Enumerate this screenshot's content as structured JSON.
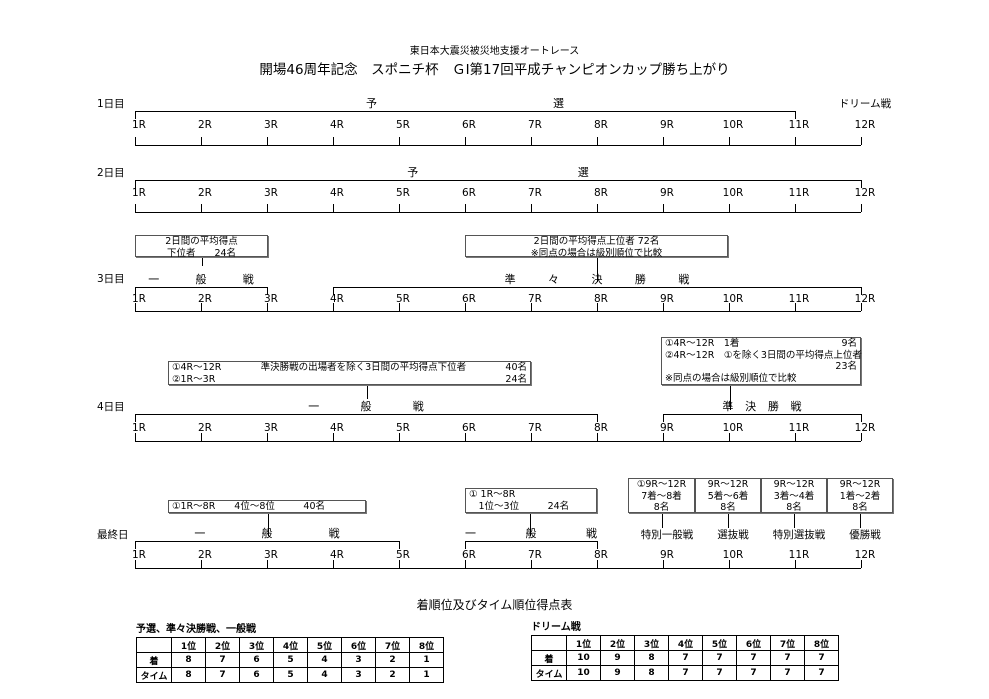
{
  "header": {
    "subtitle": "東日本大震災被災地支援オートレース",
    "title": "開場46周年記念　スポニチ杯　ＧⅠ第17回平成チャンピオンカップ勝ち上がり"
  },
  "rounds": [
    "1R",
    "2R",
    "3R",
    "4R",
    "5R",
    "6R",
    "7R",
    "8R",
    "9R",
    "10R",
    "11R",
    "12R"
  ],
  "days": [
    {
      "label": "1日目",
      "segments": [
        {
          "from": 1,
          "to": 11,
          "label": "予選"
        }
      ],
      "round_labels": [
        {
          "round": 12,
          "label": "ドリーム戦"
        }
      ]
    },
    {
      "label": "2日目",
      "segments": [
        {
          "from": 1,
          "to": 12,
          "label": "予選"
        }
      ],
      "round_labels": []
    },
    {
      "label": "3日目",
      "segments": [
        {
          "from": 1,
          "to": 3,
          "label": "一般戦"
        },
        {
          "from": 4,
          "to": 12,
          "label": "準々決勝戦"
        }
      ],
      "round_labels": []
    },
    {
      "label": "4日目",
      "segments": [
        {
          "from": 1,
          "to": 8,
          "label": "一般戦"
        },
        {
          "from": 9,
          "to": 12,
          "label": "準決勝戦"
        }
      ],
      "round_labels": []
    },
    {
      "label": "最終日",
      "segments": [
        {
          "from": 1,
          "to": 5,
          "label": "一般戦"
        },
        {
          "from": 6,
          "to": 8,
          "label": "一般戦"
        }
      ],
      "round_labels": [
        {
          "round": 9,
          "label": "特別一般戦"
        },
        {
          "round": 10,
          "label": "選抜戦"
        },
        {
          "round": 11,
          "label": "特別選抜戦"
        },
        {
          "round": 12,
          "label": "優勝戦"
        }
      ]
    }
  ],
  "boxes": [
    {
      "rows": [
        [
          "2日間の平均得点"
        ],
        [
          "下位者　　24名"
        ]
      ]
    },
    {
      "rows": [
        [
          "2日間の平均得点上位者  72名"
        ],
        [
          "※同点の場合は級別順位で比較"
        ]
      ]
    },
    {
      "rows": [
        [
          "①4R～12R",
          "準決勝戦の出場者を除く3日間の平均得点下位者",
          "40名"
        ],
        [
          "②1R～3R",
          "24名"
        ]
      ]
    },
    {
      "rows": [
        [
          "①4R～12R　1着",
          "9名"
        ],
        [
          "②4R～12R　①を除く3日間の平均得点上位者"
        ],
        [
          "",
          "23名"
        ],
        [
          "※同点の場合は級別順位で比較"
        ]
      ]
    },
    {
      "rows": [
        [
          "①1R～8R　　4位～8位　　　40名"
        ]
      ]
    },
    {
      "rows": [
        [
          "①  1R～8R"
        ],
        [
          "　1位～3位　　　24名"
        ]
      ]
    },
    {
      "rows": [
        [
          "①9R～12R"
        ],
        [
          "7着～8着"
        ],
        [
          "8名"
        ]
      ]
    },
    {
      "rows": [
        [
          "9R～12R"
        ],
        [
          "5着～6着"
        ],
        [
          "8名"
        ]
      ]
    },
    {
      "rows": [
        [
          "9R～12R"
        ],
        [
          "3着～4着"
        ],
        [
          "8名"
        ]
      ]
    },
    {
      "rows": [
        [
          "9R～12R"
        ],
        [
          "1着～2着"
        ],
        [
          "8名"
        ]
      ]
    }
  ],
  "points": {
    "title": "着順位及びタイム順位得点表",
    "headers": [
      "",
      "1位",
      "2位",
      "3位",
      "4位",
      "5位",
      "6位",
      "7位",
      "8位"
    ],
    "tables": [
      {
        "caption": "予選、準々決勝戦、一般戦",
        "rows": [
          [
            "着",
            "8",
            "7",
            "6",
            "5",
            "4",
            "3",
            "2",
            "1"
          ],
          [
            "タイム",
            "8",
            "7",
            "6",
            "5",
            "4",
            "3",
            "2",
            "1"
          ]
        ]
      },
      {
        "caption": "ドリーム戦",
        "rows": [
          [
            "着",
            "10",
            "9",
            "8",
            "7",
            "7",
            "7",
            "7",
            "7"
          ],
          [
            "タイム",
            "10",
            "9",
            "8",
            "7",
            "7",
            "7",
            "7",
            "7"
          ]
        ]
      }
    ]
  }
}
